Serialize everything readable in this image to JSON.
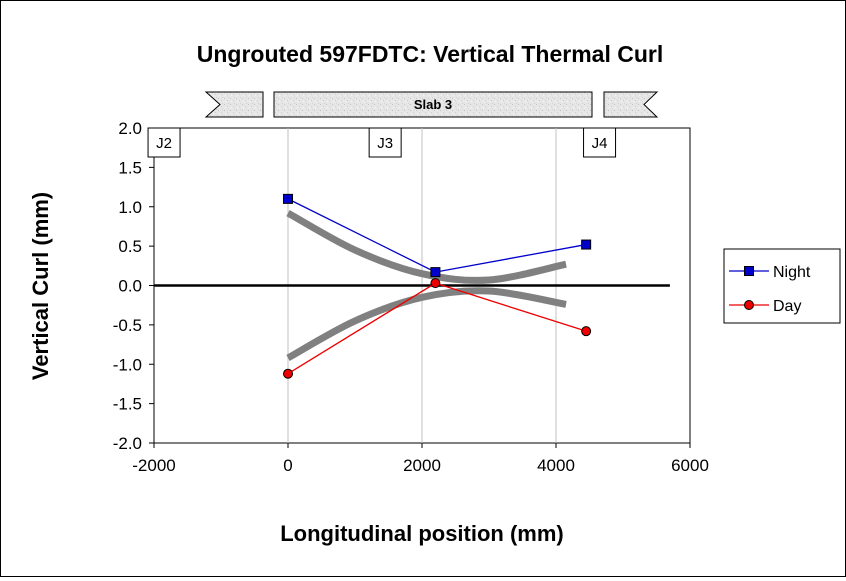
{
  "chart_data": {
    "type": "line",
    "title": "Ungrouted 597FDTC: Vertical Thermal Curl",
    "xlabel": "Longitudinal position (mm)",
    "ylabel": "Vertical Curl (mm)",
    "xlim": [
      -2000,
      6000
    ],
    "ylim": [
      -2.0,
      2.0
    ],
    "xticks": [
      -2000,
      0,
      2000,
      4000,
      6000
    ],
    "yticks": [
      "2.0",
      "1.5",
      "1.0",
      "0.5",
      "0.0",
      "-0.5",
      "-1.0",
      "-1.5",
      "-2.0"
    ],
    "grid": "vertical",
    "legend": "right",
    "series": [
      {
        "name": "Night",
        "color": "#0000cc",
        "marker": "square",
        "x": [
          0,
          2200,
          4450
        ],
        "y": [
          1.1,
          0.17,
          0.52
        ]
      },
      {
        "name": "Day",
        "color": "#ee0000",
        "marker": "circle",
        "x": [
          0,
          2200,
          4450
        ],
        "y": [
          -1.12,
          0.03,
          -0.58
        ]
      }
    ],
    "trend_curves": [
      {
        "color": "#808080",
        "x": [
          0,
          1000,
          2000,
          3000,
          4150
        ],
        "y": [
          0.92,
          0.45,
          0.15,
          0.07,
          0.27
        ]
      },
      {
        "color": "#808080",
        "x": [
          0,
          1000,
          2000,
          3000,
          4150
        ],
        "y": [
          -0.92,
          -0.45,
          -0.15,
          -0.07,
          -0.24
        ]
      }
    ],
    "slab": {
      "label": "Slab 3"
    },
    "joints": [
      {
        "label": "J2",
        "x": -1850
      },
      {
        "label": "J3",
        "x": 1450
      },
      {
        "label": "J4",
        "x": 4650
      }
    ]
  }
}
